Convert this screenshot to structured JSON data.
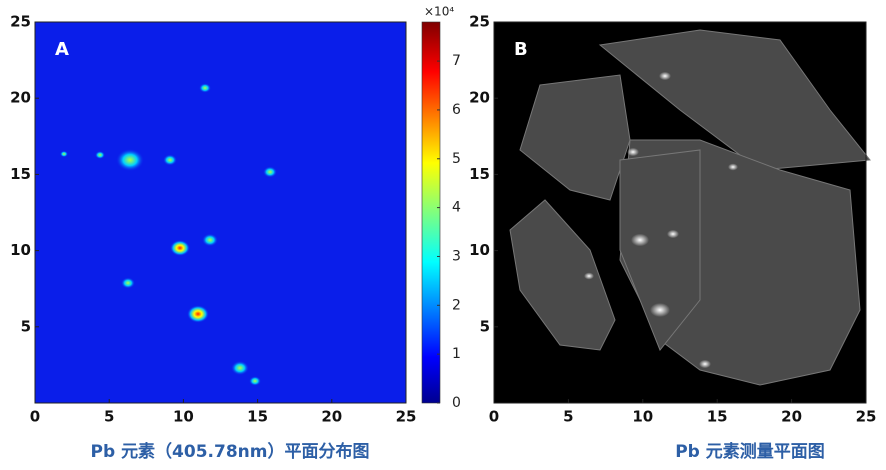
{
  "chart_data": [
    {
      "type": "heatmap",
      "label": "A",
      "xlim": [
        0,
        25
      ],
      "ylim": [
        0,
        25
      ],
      "xticks": [
        0,
        5,
        10,
        15,
        20,
        25
      ],
      "yticks": [
        5,
        10,
        15,
        20,
        25
      ],
      "colorbar": {
        "lim": [
          0,
          7.8
        ],
        "ticks": [
          0,
          1,
          2,
          3,
          4,
          5,
          6,
          7
        ],
        "multiplier": "×10⁴"
      },
      "caption": "Pb 元素（405.78nm）平面分布图"
    },
    {
      "type": "image",
      "label": "B",
      "xlim": [
        0,
        25
      ],
      "ylim": [
        0,
        25
      ],
      "xticks": [
        0,
        5,
        10,
        15,
        20,
        25
      ],
      "yticks": [
        5,
        10,
        15,
        20,
        25
      ],
      "caption": "Pb 元素测量平面图"
    }
  ]
}
